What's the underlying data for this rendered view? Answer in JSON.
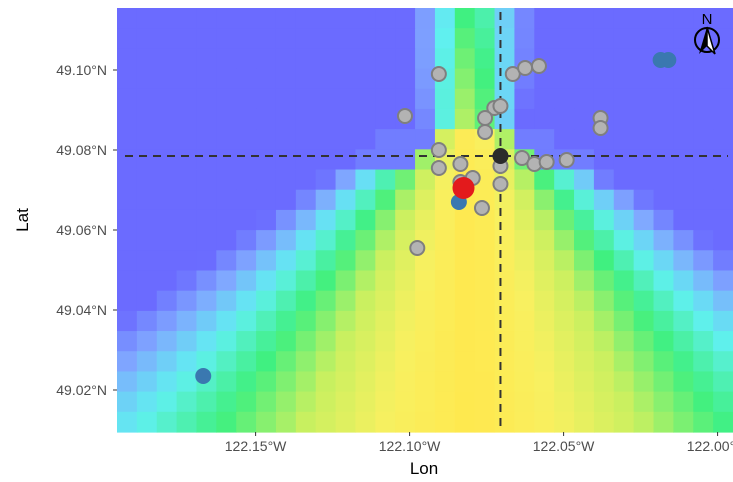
{
  "chart_data": {
    "type": "map-heatmap",
    "x_axis": {
      "label": "Lon",
      "range": [
        -122.195,
        -121.995
      ],
      "ticks": [
        {
          "value": -122.15,
          "label": "122.15°W"
        },
        {
          "value": -122.1,
          "label": "122.10°W"
        },
        {
          "value": -122.05,
          "label": "122.05°W"
        },
        {
          "value": -122.0,
          "label": "122.00°W"
        }
      ]
    },
    "y_axis": {
      "label": "Lat",
      "range": [
        49.0095,
        49.1155
      ],
      "ticks": [
        {
          "value": 49.02,
          "label": "49.02°N"
        },
        {
          "value": 49.04,
          "label": "49.04°N"
        },
        {
          "value": 49.06,
          "label": "49.06°N"
        },
        {
          "value": 49.08,
          "label": "49.08°N"
        },
        {
          "value": 49.1,
          "label": "49.10°N"
        }
      ]
    },
    "grid": false,
    "reference_lines": {
      "lon": -122.0705,
      "lat": 49.0785
    },
    "north_arrow": {
      "label": "N",
      "position": "top-right"
    },
    "colors": {
      "dashed_line": "#333333",
      "gray_point_fill": "#b3b3b3",
      "gray_point_stroke": "#7f7f7f",
      "blue_point": "#3a78b0",
      "red_point": "#e31a1c",
      "center_point": "#2b2b2b"
    },
    "points": {
      "gray": [
        {
          "lon": -122.0905,
          "lat": 49.099
        },
        {
          "lon": -122.1015,
          "lat": 49.0885
        },
        {
          "lon": -122.0665,
          "lat": 49.099
        },
        {
          "lon": -122.0625,
          "lat": 49.1005
        },
        {
          "lon": -122.058,
          "lat": 49.101
        },
        {
          "lon": -122.0725,
          "lat": 49.0905
        },
        {
          "lon": -122.0705,
          "lat": 49.091
        },
        {
          "lon": -122.0755,
          "lat": 49.088
        },
        {
          "lon": -122.0755,
          "lat": 49.0845
        },
        {
          "lon": -122.038,
          "lat": 49.088
        },
        {
          "lon": -122.038,
          "lat": 49.0855
        },
        {
          "lon": -122.0905,
          "lat": 49.08
        },
        {
          "lon": -122.0905,
          "lat": 49.0755
        },
        {
          "lon": -122.0835,
          "lat": 49.0765
        },
        {
          "lon": -122.0705,
          "lat": 49.076
        },
        {
          "lon": -122.0635,
          "lat": 49.078
        },
        {
          "lon": -122.0595,
          "lat": 49.0765
        },
        {
          "lon": -122.0555,
          "lat": 49.077
        },
        {
          "lon": -122.049,
          "lat": 49.0775
        },
        {
          "lon": -122.0795,
          "lat": 49.073
        },
        {
          "lon": -122.0835,
          "lat": 49.072
        },
        {
          "lon": -122.0705,
          "lat": 49.0715
        },
        {
          "lon": -122.0765,
          "lat": 49.0655
        },
        {
          "lon": -122.0975,
          "lat": 49.0555
        }
      ],
      "blue": [
        {
          "lon": -122.167,
          "lat": 49.0235
        },
        {
          "lon": -122.084,
          "lat": 49.067
        },
        {
          "lon": -122.0185,
          "lat": 49.1025
        },
        {
          "lon": -122.016,
          "lat": 49.1025
        }
      ],
      "red": [
        {
          "lon": -122.0825,
          "lat": 49.0705
        }
      ],
      "center": [
        {
          "lon": -122.0705,
          "lat": 49.0785
        }
      ]
    },
    "heat_field": {
      "colorscale": [
        "#6b6bff",
        "#80a8ff",
        "#60f0f0",
        "#40f080",
        "#c8f060",
        "#f8f060",
        "#ffe84e"
      ],
      "grid_cols": 31,
      "grid_rows": 21,
      "center_lon": -122.08,
      "apex_lat": 49.084
    }
  }
}
